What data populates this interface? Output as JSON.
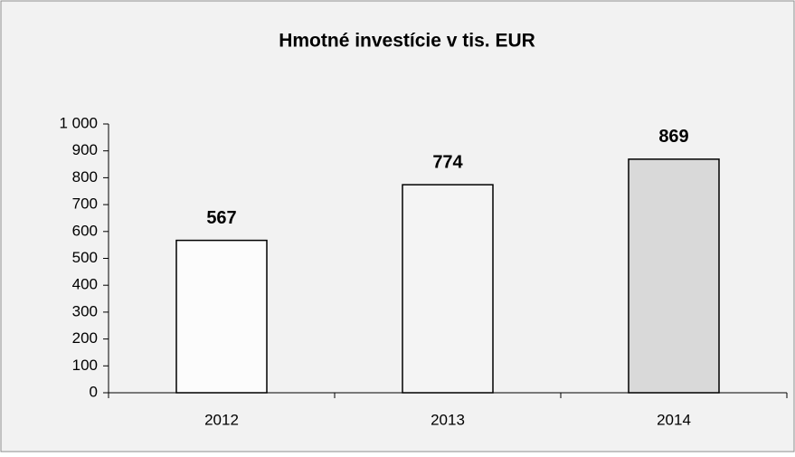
{
  "chart_data": {
    "type": "bar",
    "title": "Hmotné investície v tis. EUR",
    "categories": [
      "2012",
      "2013",
      "2014"
    ],
    "values": [
      567,
      774,
      869
    ],
    "colors": [
      "#fcfcfc",
      "#f4f4f4",
      "#d9d9d9"
    ],
    "ylim": [
      0,
      1000
    ],
    "yticks": [
      0,
      100,
      200,
      300,
      400,
      500,
      600,
      700,
      800,
      900,
      {
        "value": 1000,
        "label": "1 000"
      }
    ]
  }
}
